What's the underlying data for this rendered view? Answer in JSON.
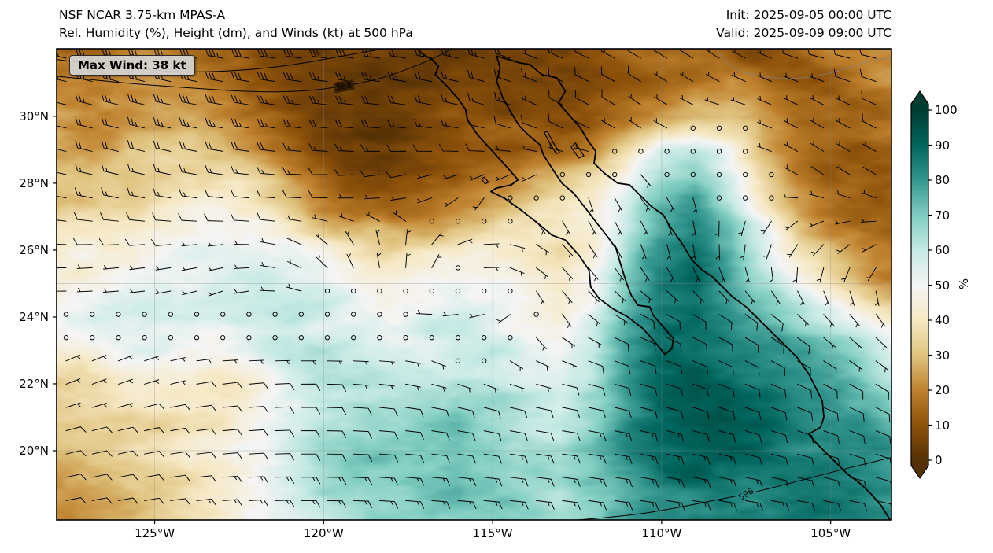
{
  "header": {
    "title_line1": "NSF NCAR 3.75-km MPAS-A",
    "title_line2": "Rel. Humidity (%), Height (dm), and Winds (kt) at 500 hPa",
    "init_label": "Init: 2025-09-05 00:00 UTC",
    "valid_label": "Valid: 2025-09-09 09:00 UTC"
  },
  "map": {
    "max_wind_badge": "Max Wind: 38 kt",
    "extent": {
      "lon_west": 127.9,
      "lon_east": 103.2,
      "lat_north": 32.02,
      "lat_south": 17.93
    },
    "x_ticks": [
      {
        "lon": 125,
        "label": "125°W"
      },
      {
        "lon": 120,
        "label": "120°W"
      },
      {
        "lon": 115,
        "label": "115°W"
      },
      {
        "lon": 110,
        "label": "110°W"
      },
      {
        "lon": 105,
        "label": "105°W"
      }
    ],
    "y_ticks": [
      {
        "lat": 30,
        "label": "30°N"
      },
      {
        "lat": 28,
        "label": "28°N"
      },
      {
        "lat": 26,
        "label": "26°N"
      },
      {
        "lat": 24,
        "label": "24°N"
      },
      {
        "lat": 22,
        "label": "22°N"
      },
      {
        "lat": 20,
        "label": "20°N"
      }
    ],
    "gridline_lons": [
      125,
      120,
      115,
      110,
      105
    ],
    "gridline_lats": [
      20,
      25,
      30
    ]
  },
  "colorbar": {
    "label": "%",
    "ticks": [
      0,
      10,
      20,
      30,
      40,
      50,
      60,
      70,
      80,
      90,
      100
    ],
    "stops": [
      {
        "v": 0,
        "c": "#543005"
      },
      {
        "v": 10,
        "c": "#8c510a"
      },
      {
        "v": 20,
        "c": "#bf812d"
      },
      {
        "v": 30,
        "c": "#dfc27d"
      },
      {
        "v": 40,
        "c": "#f6e8c3"
      },
      {
        "v": 50,
        "c": "#f5f5f5"
      },
      {
        "v": 60,
        "c": "#c7eae5"
      },
      {
        "v": 70,
        "c": "#80cdc1"
      },
      {
        "v": 80,
        "c": "#35978f"
      },
      {
        "v": 90,
        "c": "#01665e"
      },
      {
        "v": 100,
        "c": "#003c30"
      }
    ]
  },
  "chart_data": {
    "type": "heatmap",
    "title": "Rel. Humidity (%), Height (dm), and Winds (kt) at 500 hPa",
    "model": "NSF NCAR 3.75-km MPAS-A",
    "init": "2025-09-05 00:00 UTC",
    "valid": "2025-09-09 09:00 UTC",
    "max_wind_kt": 38,
    "units": "%",
    "colorbar_range": [
      0,
      100
    ],
    "x_axis": {
      "ticks": [
        "125°W",
        "120°W",
        "115°W",
        "110°W",
        "105°W"
      ],
      "range_lon_w": [
        127.9,
        103.2
      ]
    },
    "y_axis": {
      "ticks": [
        "30°N",
        "28°N",
        "26°N",
        "24°N",
        "22°N",
        "20°N"
      ],
      "range_lat_n": [
        17.93,
        32.02
      ]
    },
    "humidity_grid": {
      "lon_w_max": 128,
      "lon_w_min": 103,
      "nx": 26,
      "lat_max": 32,
      "lat_min": 18,
      "ny": 15,
      "values": [
        [
          18,
          16,
          18,
          20,
          17,
          14,
          10,
          7,
          6,
          5,
          5,
          6,
          6,
          7,
          8,
          8,
          9,
          10,
          12,
          14,
          12,
          10,
          13,
          18,
          22,
          20
        ],
        [
          22,
          19,
          21,
          24,
          20,
          16,
          11,
          8,
          6,
          5,
          5,
          5,
          6,
          7,
          9,
          9,
          10,
          11,
          13,
          16,
          20,
          16,
          13,
          14,
          18,
          22
        ],
        [
          26,
          22,
          25,
          28,
          24,
          20,
          13,
          9,
          7,
          5,
          5,
          6,
          8,
          10,
          11,
          12,
          14,
          16,
          22,
          30,
          28,
          20,
          15,
          13,
          14,
          16
        ],
        [
          28,
          26,
          28,
          31,
          30,
          27,
          19,
          12,
          8,
          6,
          6,
          8,
          10,
          13,
          15,
          18,
          24,
          35,
          55,
          62,
          48,
          28,
          18,
          13,
          12,
          14
        ],
        [
          30,
          30,
          33,
          36,
          38,
          39,
          34,
          24,
          14,
          10,
          9,
          11,
          15,
          20,
          25,
          30,
          36,
          48,
          68,
          74,
          58,
          38,
          22,
          15,
          12,
          12
        ],
        [
          34,
          37,
          40,
          42,
          45,
          47,
          44,
          38,
          28,
          21,
          17,
          20,
          25,
          30,
          35,
          40,
          46,
          60,
          74,
          80,
          68,
          48,
          28,
          18,
          14,
          12
        ],
        [
          40,
          42,
          45,
          48,
          50,
          52,
          55,
          52,
          46,
          40,
          36,
          38,
          41,
          43,
          41,
          39,
          46,
          64,
          80,
          85,
          74,
          58,
          38,
          28,
          20,
          16
        ],
        [
          45,
          48,
          50,
          52,
          55,
          57,
          60,
          58,
          54,
          50,
          48,
          50,
          52,
          50,
          46,
          43,
          50,
          70,
          84,
          88,
          80,
          68,
          52,
          38,
          28,
          22
        ],
        [
          50,
          52,
          54,
          55,
          56,
          58,
          60,
          62,
          58,
          55,
          52,
          55,
          58,
          55,
          48,
          45,
          55,
          74,
          87,
          90,
          85,
          78,
          68,
          58,
          48,
          38
        ],
        [
          44,
          47,
          50,
          52,
          50,
          48,
          52,
          58,
          60,
          58,
          55,
          58,
          60,
          58,
          52,
          50,
          60,
          78,
          90,
          92,
          88,
          84,
          80,
          74,
          64,
          54
        ],
        [
          34,
          37,
          40,
          42,
          40,
          38,
          45,
          54,
          60,
          62,
          60,
          62,
          65,
          62,
          58,
          55,
          65,
          80,
          90,
          92,
          90,
          87,
          84,
          81,
          74,
          64
        ],
        [
          30,
          32,
          35,
          38,
          40,
          42,
          50,
          57,
          62,
          65,
          65,
          67,
          70,
          67,
          62,
          60,
          68,
          81,
          89,
          91,
          90,
          88,
          86,
          83,
          79,
          71
        ],
        [
          28,
          30,
          32,
          36,
          40,
          45,
          52,
          60,
          65,
          68,
          68,
          70,
          72,
          70,
          65,
          62,
          70,
          81,
          87,
          89,
          89,
          88,
          86,
          84,
          81,
          77
        ],
        [
          25,
          28,
          30,
          34,
          38,
          44,
          52,
          58,
          64,
          68,
          70,
          72,
          72,
          70,
          66,
          64,
          70,
          79,
          85,
          87,
          87,
          86,
          85,
          84,
          82,
          79
        ],
        [
          23,
          25,
          28,
          32,
          36,
          42,
          50,
          56,
          62,
          66,
          68,
          70,
          70,
          68,
          65,
          63,
          68,
          77,
          83,
          85,
          85,
          84,
          84,
          83,
          82,
          79
        ]
      ]
    },
    "wind_grid_kt": {
      "lon_w_max": 128,
      "lon_w_min": 103,
      "nx": 11,
      "lat_max": 32,
      "lat_min": 18,
      "ny": 8,
      "u": [
        [
          26,
          30,
          33,
          30,
          27,
          24,
          18,
          10,
          6,
          8,
          10
        ],
        [
          20,
          24,
          27,
          24,
          19,
          14,
          9,
          4,
          2,
          5,
          8
        ],
        [
          14,
          16,
          14,
          11,
          7,
          4,
          1,
          -3,
          1,
          3,
          5
        ],
        [
          8,
          8,
          6,
          3,
          0,
          -6,
          -4,
          -2,
          0,
          3,
          4
        ],
        [
          1,
          1,
          1,
          2,
          1,
          6,
          -2,
          -8,
          -8,
          -5,
          -3
        ],
        [
          -5,
          -6,
          -8,
          -8,
          -6,
          -5,
          -8,
          -10,
          -10,
          -8,
          -6
        ],
        [
          -8,
          -10,
          -12,
          -12,
          -12,
          -12,
          -14,
          -14,
          -12,
          -10,
          -8
        ],
        [
          -10,
          -12,
          -14,
          -15,
          -15,
          -15,
          -16,
          -15,
          -14,
          -12,
          -10
        ]
      ],
      "v": [
        [
          -6,
          -8,
          -6,
          -4,
          -4,
          -6,
          -8,
          -6,
          -4,
          -2,
          -2
        ],
        [
          -5,
          -6,
          -5,
          -3,
          -2,
          -4,
          -5,
          -3,
          0,
          -3,
          -4
        ],
        [
          -3,
          -4,
          -2,
          0,
          2,
          3,
          2,
          3,
          1,
          -2,
          -3
        ],
        [
          0,
          1,
          1,
          -2,
          -5,
          -1,
          4,
          6,
          6,
          4,
          2
        ],
        [
          0,
          0,
          1,
          0,
          -1,
          1,
          3,
          4,
          5,
          5,
          4
        ],
        [
          -2,
          -2,
          -1,
          0,
          1,
          2,
          2,
          3,
          4,
          4,
          4
        ],
        [
          -2,
          -2,
          -1,
          0,
          1,
          2,
          2,
          3,
          3,
          3,
          3
        ],
        [
          -2,
          -2,
          -1,
          0,
          1,
          1,
          2,
          2,
          2,
          2,
          2
        ]
      ]
    },
    "height_contours_dm": [
      {
        "label": "",
        "label_pos": null,
        "label_angle": 0,
        "points": [
          [
            127.9,
            31.7
          ],
          [
            126.0,
            31.45
          ],
          [
            124.0,
            31.3
          ],
          [
            122.0,
            31.4
          ],
          [
            120.5,
            31.6
          ],
          [
            119.2,
            31.85
          ],
          [
            118.2,
            32.02
          ]
        ]
      },
      {
        "label": "588",
        "label_pos": [
          119.4,
          30.9
        ],
        "label_angle": -10,
        "points": [
          [
            127.9,
            31.2
          ],
          [
            126.0,
            31.0
          ],
          [
            124.0,
            30.85
          ],
          [
            122.0,
            30.72
          ],
          [
            120.5,
            30.75
          ],
          [
            119.4,
            30.9
          ],
          [
            118.4,
            31.1
          ],
          [
            117.4,
            31.45
          ],
          [
            116.6,
            31.8
          ],
          [
            116.2,
            32.02
          ]
        ]
      },
      {
        "label": "598",
        "label_pos": [
          107.5,
          18.7
        ],
        "label_angle": -32,
        "points": [
          [
            112.5,
            17.93
          ],
          [
            111.0,
            18.05
          ],
          [
            109.5,
            18.3
          ],
          [
            108.3,
            18.55
          ],
          [
            107.5,
            18.7
          ],
          [
            106.3,
            19.0
          ],
          [
            105.0,
            19.35
          ],
          [
            104.0,
            19.6
          ],
          [
            103.2,
            19.8
          ]
        ]
      }
    ],
    "coastline": [
      [
        117.25,
        32.02
      ],
      [
        117.05,
        31.85
      ],
      [
        116.8,
        31.7
      ],
      [
        116.6,
        31.5
      ],
      [
        116.7,
        31.25
      ],
      [
        116.35,
        30.9
      ],
      [
        116.0,
        30.5
      ],
      [
        115.8,
        30.2
      ],
      [
        115.75,
        29.9
      ],
      [
        115.45,
        29.45
      ],
      [
        115.0,
        28.95
      ],
      [
        114.55,
        28.45
      ],
      [
        114.25,
        28.1
      ],
      [
        114.45,
        27.95
      ],
      [
        114.9,
        27.85
      ],
      [
        115.05,
        27.75
      ],
      [
        114.65,
        27.55
      ],
      [
        114.1,
        27.15
      ],
      [
        113.6,
        26.75
      ],
      [
        113.25,
        26.45
      ],
      [
        112.85,
        26.3
      ],
      [
        112.45,
        25.85
      ],
      [
        112.15,
        25.4
      ],
      [
        112.1,
        24.9
      ],
      [
        111.85,
        24.55
      ],
      [
        111.45,
        24.25
      ],
      [
        111.0,
        24.0
      ],
      [
        110.55,
        23.65
      ],
      [
        110.2,
        23.25
      ],
      [
        109.9,
        22.88
      ],
      [
        109.7,
        23.05
      ],
      [
        109.65,
        23.35
      ],
      [
        109.95,
        23.7
      ],
      [
        110.25,
        24.05
      ],
      [
        110.35,
        24.3
      ],
      [
        110.7,
        24.35
      ],
      [
        110.9,
        24.65
      ],
      [
        111.05,
        25.05
      ],
      [
        111.25,
        25.7
      ],
      [
        111.35,
        26.05
      ],
      [
        111.6,
        26.4
      ],
      [
        111.95,
        26.85
      ],
      [
        112.25,
        27.25
      ],
      [
        112.6,
        27.7
      ],
      [
        112.95,
        28.0
      ],
      [
        113.15,
        28.3
      ],
      [
        113.5,
        28.85
      ],
      [
        113.6,
        29.15
      ],
      [
        113.95,
        29.45
      ],
      [
        114.2,
        29.7
      ],
      [
        114.45,
        30.1
      ],
      [
        114.7,
        30.55
      ],
      [
        114.88,
        31.05
      ],
      [
        114.78,
        31.45
      ],
      [
        114.88,
        31.8
      ],
      [
        114.6,
        31.72
      ],
      [
        114.2,
        31.6
      ],
      [
        113.9,
        31.55
      ],
      [
        113.55,
        31.25
      ],
      [
        113.1,
        31.15
      ],
      [
        112.85,
        30.75
      ],
      [
        113.05,
        30.4
      ],
      [
        112.75,
        30.05
      ],
      [
        112.4,
        29.65
      ],
      [
        112.2,
        29.3
      ],
      [
        111.95,
        28.95
      ],
      [
        112.0,
        28.6
      ],
      [
        111.7,
        28.3
      ],
      [
        111.3,
        28.0
      ],
      [
        110.95,
        27.95
      ],
      [
        110.6,
        27.6
      ],
      [
        110.3,
        27.3
      ],
      [
        109.95,
        27.05
      ],
      [
        109.75,
        26.7
      ],
      [
        109.4,
        26.2
      ],
      [
        109.1,
        25.7
      ],
      [
        108.8,
        25.4
      ],
      [
        108.5,
        25.2
      ],
      [
        108.2,
        24.9
      ],
      [
        107.9,
        24.6
      ],
      [
        107.5,
        24.3
      ],
      [
        107.1,
        23.9
      ],
      [
        106.7,
        23.5
      ],
      [
        106.4,
        23.2
      ],
      [
        106.0,
        22.8
      ],
      [
        105.65,
        22.3
      ],
      [
        105.45,
        21.9
      ],
      [
        105.25,
        21.5
      ],
      [
        105.2,
        21.0
      ],
      [
        105.3,
        20.7
      ],
      [
        105.65,
        20.5
      ],
      [
        105.4,
        20.2
      ],
      [
        104.9,
        19.7
      ],
      [
        104.5,
        19.3
      ],
      [
        104.1,
        19.0
      ],
      [
        103.8,
        18.7
      ],
      [
        103.5,
        18.35
      ],
      [
        103.25,
        17.95
      ]
    ],
    "islands": [
      {
        "points": [
          [
            113.38,
            29.55
          ],
          [
            113.2,
            29.2
          ],
          [
            113.02,
            28.92
          ],
          [
            113.12,
            28.88
          ],
          [
            113.32,
            29.22
          ],
          [
            113.48,
            29.52
          ],
          [
            113.38,
            29.55
          ]
        ]
      },
      {
        "points": [
          [
            112.55,
            29.2
          ],
          [
            112.3,
            28.82
          ],
          [
            112.45,
            28.75
          ],
          [
            112.68,
            29.08
          ],
          [
            112.55,
            29.2
          ]
        ]
      },
      {
        "points": [
          [
            115.25,
            28.18
          ],
          [
            115.12,
            28.03
          ],
          [
            115.22,
            27.98
          ],
          [
            115.33,
            28.12
          ],
          [
            115.25,
            28.18
          ]
        ]
      }
    ],
    "state_borders": [
      {
        "points": [
          [
            108.4,
            32.02
          ],
          [
            108.0,
            31.45
          ],
          [
            107.2,
            31.2
          ],
          [
            106.0,
            31.1
          ],
          [
            104.9,
            31.3
          ],
          [
            103.9,
            31.65
          ],
          [
            103.2,
            31.75
          ]
        ]
      }
    ]
  }
}
